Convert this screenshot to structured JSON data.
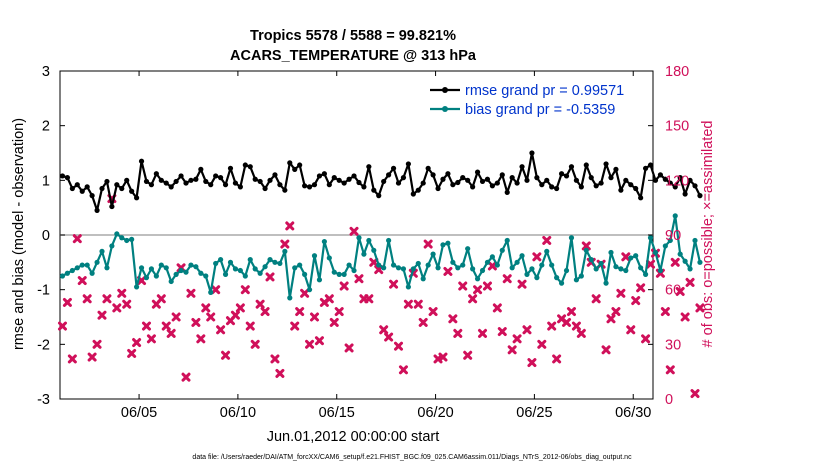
{
  "chart_data": {
    "type": "line",
    "title": "Tropics 5578 / 5588 = 99.821%",
    "subtitle": "ACARS_TEMPERATURE @ 313 hPa",
    "xlabel": "Jun.01,2012 00:00:00 start",
    "ylabel_left": "rmse and bias (model - observation)",
    "ylabel_right": "# of obs: o=possible; ×=assimilated",
    "footnote": "data file: /Users/raeder/DAI/ATM_forcXX/CAM6_setup/f.e21.FHIST_BGC.f09_025.CAM6assim.011/Diags_NTrS_2012-06/obs_diag_output.nc",
    "xlim": [
      1,
      31
    ],
    "ylim_left": [
      -3,
      3
    ],
    "ylim_right": [
      0,
      180
    ],
    "x_ticks": [
      5,
      10,
      15,
      20,
      25,
      30
    ],
    "x_tick_labels": [
      "06/05",
      "06/10",
      "06/15",
      "06/20",
      "06/25",
      "06/30"
    ],
    "y_left_ticks": [
      -3,
      -2,
      -1,
      0,
      1,
      2,
      3
    ],
    "y_right_ticks": [
      0,
      30,
      60,
      90,
      120,
      150,
      180
    ],
    "colors": {
      "rmse": "#000000",
      "bias": "#008080",
      "obs": "#d0105a",
      "legend_text": "#0033cc",
      "zero_line": "#aaaaaa"
    },
    "legend_position": "top-right",
    "series": [
      {
        "name": "rmse grand pr = 0.99571",
        "axis": "left",
        "x_start": 1.125,
        "x_step": 0.25,
        "values": [
          1.08,
          1.05,
          0.85,
          0.92,
          0.8,
          0.88,
          0.72,
          0.45,
          0.85,
          0.98,
          0.52,
          0.92,
          0.85,
          1.0,
          0.8,
          0.68,
          1.35,
          0.98,
          0.92,
          1.12,
          1.0,
          0.95,
          0.88,
          0.98,
          1.08,
          0.95,
          1.0,
          1.02,
          1.2,
          0.98,
          0.92,
          1.08,
          1.05,
          0.92,
          1.22,
          0.95,
          0.88,
          1.28,
          1.25,
          1.02,
          0.98,
          0.85,
          1.0,
          1.1,
          0.92,
          0.82,
          1.32,
          1.2,
          1.28,
          0.9,
          0.88,
          0.92,
          1.08,
          1.12,
          0.92,
          1.05,
          1.0,
          0.95,
          1.02,
          1.08,
          0.96,
          0.88,
          1.25,
          0.82,
          0.72,
          0.98,
          1.1,
          1.22,
          0.95,
          1.05,
          1.3,
          0.75,
          0.82,
          0.95,
          1.22,
          1.1,
          0.85,
          1.02,
          1.12,
          0.92,
          0.96,
          1.05,
          1.0,
          0.88,
          1.15,
          0.98,
          1.02,
          0.9,
          0.95,
          1.1,
          0.78,
          1.05,
          0.95,
          1.25,
          1.0,
          1.5,
          1.05,
          0.92,
          1.0,
          0.88,
          0.85,
          1.12,
          1.08,
          1.25,
          1.0,
          0.88,
          1.28,
          1.05,
          0.9,
          0.95,
          1.3,
          1.05,
          1.2,
          0.82,
          1.0,
          0.92,
          0.85,
          0.68,
          1.22,
          1.28,
          1.0,
          1.1,
          1.02,
          0.95,
          0.88,
          1.05,
          0.75,
          1.0,
          0.9,
          0.72
        ]
      },
      {
        "name": "bias grand pr = -0.5359",
        "axis": "left",
        "x_start": 1.125,
        "x_step": 0.25,
        "values": [
          -0.75,
          -0.7,
          -0.65,
          -0.6,
          -0.55,
          -0.55,
          -0.7,
          -0.5,
          -0.3,
          -0.6,
          -0.2,
          0.02,
          -0.05,
          -0.1,
          -0.08,
          -0.95,
          -0.6,
          -0.78,
          -0.62,
          -0.75,
          -0.55,
          -0.6,
          -0.85,
          -0.72,
          -0.65,
          -0.68,
          -0.55,
          -0.58,
          -0.7,
          -0.75,
          -1.05,
          -0.52,
          -0.45,
          -0.72,
          -0.5,
          -0.62,
          -0.65,
          -0.75,
          -0.45,
          -0.62,
          -0.7,
          -0.58,
          -0.45,
          -0.5,
          -0.52,
          -0.3,
          -1.15,
          -0.6,
          -0.55,
          -0.72,
          -1.0,
          -0.38,
          -0.82,
          -0.12,
          -0.42,
          -0.68,
          -0.72,
          -0.72,
          -0.55,
          -0.65,
          -0.05,
          -0.35,
          -0.1,
          -0.28,
          -0.55,
          -0.6,
          -0.1,
          -0.55,
          -0.6,
          -0.62,
          -0.95,
          -0.62,
          -0.52,
          -0.8,
          -0.55,
          -0.35,
          -0.6,
          -0.18,
          -0.15,
          -0.5,
          -0.6,
          -0.55,
          -0.25,
          -0.62,
          -0.8,
          -0.65,
          -0.5,
          -0.4,
          -0.55,
          -0.28,
          -0.1,
          -0.6,
          -0.5,
          -0.38,
          -0.72,
          -0.62,
          -0.78,
          -0.55,
          -0.3,
          -0.55,
          -0.78,
          -0.88,
          -0.65,
          -0.05,
          -0.82,
          -0.75,
          -0.28,
          -0.45,
          -0.62,
          -0.52,
          -0.88,
          -0.32,
          -0.58,
          -0.62,
          -0.65,
          -0.42,
          -0.38,
          -0.6,
          -0.72,
          -0.05,
          -0.32,
          -0.65,
          -0.2,
          -0.1,
          0.35,
          -0.35,
          -0.48,
          -0.62,
          -0.1,
          -0.5
        ]
      },
      {
        "name": "obs assimilated",
        "axis": "right",
        "marker": "x",
        "x_start": 1.125,
        "x_step": 0.25,
        "values": [
          40,
          53,
          22,
          88,
          65,
          55,
          23,
          30,
          46,
          55,
          110,
          50,
          58,
          52,
          25,
          31,
          65,
          40,
          33,
          52,
          55,
          40,
          36,
          45,
          72,
          12,
          58,
          42,
          33,
          50,
          45,
          60,
          38,
          24,
          43,
          46,
          50,
          60,
          40,
          30,
          52,
          48,
          67,
          22,
          14,
          85,
          95,
          40,
          48,
          58,
          30,
          45,
          32,
          53,
          55,
          42,
          48,
          62,
          28,
          92,
          66,
          55,
          55,
          75,
          71,
          38,
          34,
          63,
          29,
          16,
          52,
          69,
          52,
          42,
          85,
          48,
          22,
          23,
          70,
          44,
          36,
          62,
          24,
          55,
          60,
          36,
          62,
          73,
          50,
          37,
          66,
          27,
          33,
          63,
          38,
          20,
          78,
          30,
          87,
          40,
          22,
          44,
          42,
          48,
          40,
          36,
          84,
          75,
          55,
          74,
          27,
          44,
          48,
          58,
          78,
          38,
          54,
          61,
          33,
          74,
          80,
          69,
          48,
          16,
          75,
          59,
          45,
          64,
          3,
          50
        ]
      }
    ]
  }
}
